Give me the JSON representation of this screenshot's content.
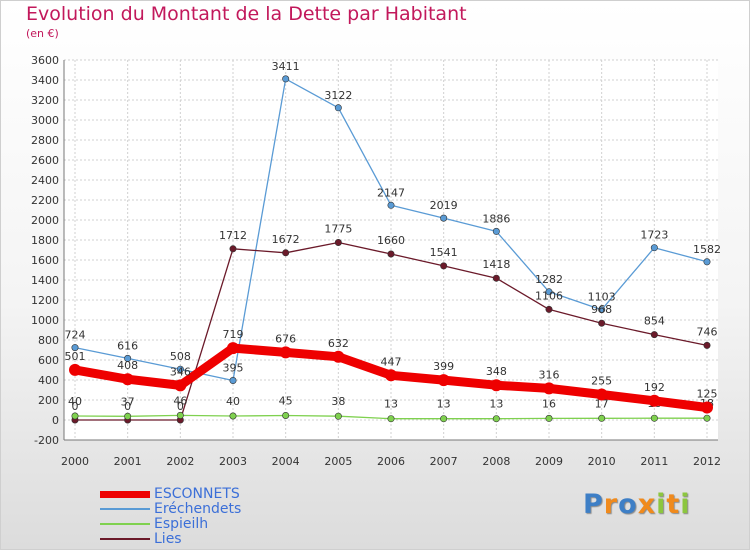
{
  "chart_data": {
    "type": "line",
    "title": "Evolution du Montant de la Dette par Habitant",
    "subtitle": "(en €)",
    "xlabel": "",
    "ylabel": "",
    "categories": [
      "2000",
      "2001",
      "2002",
      "2003",
      "2004",
      "2005",
      "2006",
      "2007",
      "2008",
      "2009",
      "2010",
      "2011",
      "2012"
    ],
    "ylim": [
      -200,
      3600
    ],
    "yticks": [
      -200,
      0,
      200,
      400,
      600,
      800,
      1000,
      1200,
      1400,
      1600,
      1800,
      2000,
      2200,
      2400,
      2600,
      2800,
      3000,
      3200,
      3400,
      3600
    ],
    "grid": true,
    "legend_position": "bottom-left",
    "series": [
      {
        "name": "ESCONNETS",
        "color": "#ee0000",
        "values": [
          501,
          408,
          346,
          719,
          676,
          632,
          447,
          399,
          348,
          316,
          255,
          192,
          125
        ]
      },
      {
        "name": "Eréchendets",
        "color": "#5a9bd5",
        "values": [
          724,
          616,
          508,
          395,
          3411,
          3122,
          2147,
          2019,
          1886,
          1282,
          1103,
          1723,
          1582
        ]
      },
      {
        "name": "Espieilh",
        "color": "#7fd14f",
        "values": [
          40,
          37,
          46,
          40,
          45,
          38,
          13,
          13,
          13,
          16,
          17,
          18,
          18
        ]
      },
      {
        "name": "Lies",
        "color": "#6b1a2a",
        "values": [
          0,
          0,
          0,
          1712,
          1672,
          1775,
          1660,
          1541,
          1418,
          1106,
          968,
          854,
          746
        ]
      }
    ]
  },
  "logo": {
    "letters": [
      "P",
      "r",
      "o",
      "x",
      "i",
      "t",
      "i"
    ],
    "colors": [
      "#3e7fc6",
      "#f08a1c",
      "#3e7fc6",
      "#f08a1c",
      "#8cc63f",
      "#f08a1c",
      "#8cc63f"
    ]
  }
}
